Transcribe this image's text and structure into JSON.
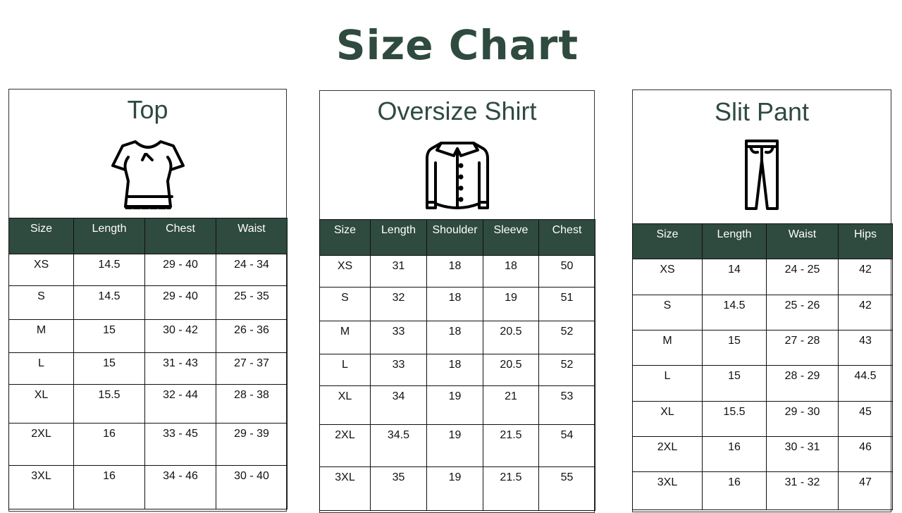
{
  "title": "Size Chart",
  "accent_color": "#2f4a3e",
  "panels": [
    {
      "title": "Top",
      "icon": "blouse-icon",
      "headers": [
        "Size",
        "Length",
        "Chest",
        "Waist"
      ],
      "rows": [
        [
          "XS",
          "14.5",
          "29 - 40",
          "24 - 34"
        ],
        [
          "S",
          "14.5",
          "29 - 40",
          "25 - 35"
        ],
        [
          "M",
          "15",
          "30 - 42",
          "26 - 36"
        ],
        [
          "L",
          "15",
          "31 - 43",
          "27 - 37"
        ],
        [
          "XL",
          "15.5",
          "32 - 44",
          "28 - 38"
        ],
        [
          "2XL",
          "16",
          "33 - 45",
          "29 - 39"
        ],
        [
          "3XL",
          "16",
          "34 - 46",
          "30 - 40"
        ]
      ]
    },
    {
      "title": "Oversize Shirt",
      "icon": "shirt-icon",
      "headers": [
        "Size",
        "Length",
        "Shoulder",
        "Sleeve",
        "Chest"
      ],
      "rows": [
        [
          "XS",
          "31",
          "18",
          "18",
          "50"
        ],
        [
          "S",
          "32",
          "18",
          "19",
          "51"
        ],
        [
          "M",
          "33",
          "18",
          "20.5",
          "52"
        ],
        [
          "L",
          "33",
          "18",
          "20.5",
          "52"
        ],
        [
          "XL",
          "34",
          "19",
          "21",
          "53"
        ],
        [
          "2XL",
          "34.5",
          "19",
          "21.5",
          "54"
        ],
        [
          "3XL",
          "35",
          "19",
          "21.5",
          "55"
        ]
      ]
    },
    {
      "title": "Slit Pant",
      "icon": "pants-icon",
      "headers": [
        "Size",
        "Length",
        "Waist",
        "Hips"
      ],
      "rows": [
        [
          "XS",
          "14",
          "24 - 25",
          "42"
        ],
        [
          "S",
          "14.5",
          "25 - 26",
          "42"
        ],
        [
          "M",
          "15",
          "27 - 28",
          "43"
        ],
        [
          "L",
          "15",
          "28 - 29",
          "44.5"
        ],
        [
          "XL",
          "15.5",
          "29 - 30",
          "45"
        ],
        [
          "2XL",
          "16",
          "30 - 31",
          "46"
        ],
        [
          "3XL",
          "16",
          "31 - 32",
          "47"
        ]
      ]
    }
  ]
}
